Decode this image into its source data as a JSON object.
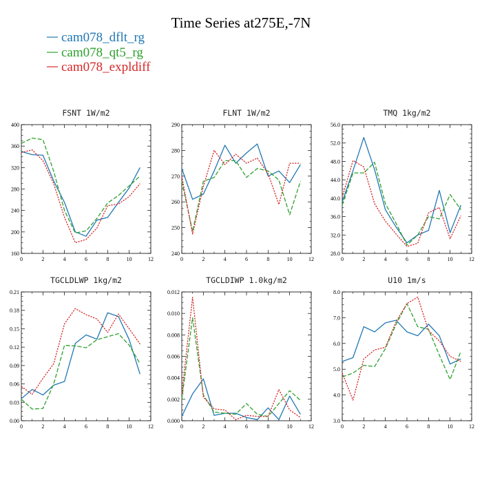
{
  "figure": {
    "title": "Time Series at275E,-7N",
    "legend": [
      {
        "name": "cam078_dflt_rg",
        "color": "#1f77b4",
        "dash": "solid"
      },
      {
        "name": "cam078_qt5_rg",
        "color": "#2ca02c",
        "dash": "dash"
      },
      {
        "name": "cam078_expldiff",
        "color": "#d62728",
        "dash": "dot"
      }
    ]
  },
  "chart_data": [
    {
      "type": "line",
      "title": "FSNT   1W/m2",
      "xlim": [
        0,
        12
      ],
      "ylim": [
        160,
        400
      ],
      "xticks": [
        "0",
        "2",
        "4",
        "6",
        "8",
        "10",
        "12"
      ],
      "yticks": [
        "160",
        "200",
        "240",
        "280",
        "320",
        "360",
        "400"
      ],
      "x": [
        0,
        1,
        2,
        3,
        4,
        5,
        6,
        7,
        8,
        9,
        10,
        11
      ],
      "series": [
        {
          "name": "cam078_dflt_rg",
          "values": [
            350,
            344,
            343,
            295,
            255,
            200,
            192,
            222,
            227,
            255,
            282,
            320
          ]
        },
        {
          "name": "cam078_qt5_rg",
          "values": [
            365,
            375,
            372,
            313,
            240,
            198,
            202,
            225,
            254,
            268,
            286,
            304
          ]
        },
        {
          "name": "cam078_expldiff",
          "values": [
            348,
            353,
            333,
            290,
            227,
            180,
            186,
            207,
            249,
            252,
            266,
            290
          ]
        }
      ]
    },
    {
      "type": "line",
      "title": "FLNT   1W/m2",
      "xlim": [
        0,
        12
      ],
      "ylim": [
        240,
        290
      ],
      "xticks": [
        "0",
        "2",
        "4",
        "6",
        "8",
        "10",
        "12"
      ],
      "yticks": [
        "240",
        "250",
        "260",
        "270",
        "280",
        "290"
      ],
      "x": [
        0,
        1,
        2,
        3,
        4,
        5,
        6,
        7,
        8,
        9,
        10,
        11
      ],
      "series": [
        {
          "name": "cam078_dflt_rg",
          "values": [
            273,
            261,
            263,
            272,
            282,
            275,
            279,
            282.5,
            270,
            272,
            267.5,
            274.5
          ]
        },
        {
          "name": "cam078_qt5_rg",
          "values": [
            268,
            248.5,
            268,
            269.5,
            276,
            276,
            269.5,
            273,
            272,
            268.5,
            255,
            268
          ]
        },
        {
          "name": "cam078_expldiff",
          "values": [
            270,
            247.5,
            266,
            280,
            274.5,
            278.5,
            275,
            277,
            271,
            259,
            275,
            275
          ]
        }
      ]
    },
    {
      "type": "line",
      "title": "TMQ   1kg/m2",
      "xlim": [
        0,
        12
      ],
      "ylim": [
        28,
        56
      ],
      "xticks": [
        "0",
        "2",
        "4",
        "6",
        "8",
        "10",
        "12"
      ],
      "yticks": [
        "28.0",
        "32.0",
        "36.0",
        "40.0",
        "44.0",
        "48.0",
        "52.0",
        "56.0"
      ],
      "x": [
        0,
        1,
        2,
        3,
        4,
        5,
        6,
        7,
        8,
        9,
        10,
        11
      ],
      "series": [
        {
          "name": "cam078_dflt_rg",
          "values": [
            39.2,
            46,
            53.2,
            46.2,
            37.5,
            33.7,
            30.3,
            32,
            33,
            41.7,
            32.5,
            38.5
          ]
        },
        {
          "name": "cam078_qt5_rg",
          "values": [
            38.5,
            45.5,
            45.5,
            47.8,
            38.8,
            34.5,
            29.8,
            32,
            36,
            35.5,
            40.8,
            37.5
          ]
        },
        {
          "name": "cam078_expldiff",
          "values": [
            40.2,
            48.2,
            46.8,
            38.8,
            35,
            32.2,
            29.5,
            30.2,
            36.8,
            38,
            31.2,
            36.2
          ]
        }
      ]
    },
    {
      "type": "line",
      "title": "TGCLDLWP   1kg/m2",
      "xlim": [
        0,
        12
      ],
      "ylim": [
        0,
        0.21
      ],
      "xticks": [
        "0",
        "2",
        "4",
        "6",
        "8",
        "10",
        "12"
      ],
      "yticks": [
        "0.00",
        "0.03",
        "0.06",
        "0.09",
        "0.12",
        "0.15",
        "0.18",
        "0.21"
      ],
      "x": [
        0,
        1,
        2,
        3,
        4,
        5,
        6,
        7,
        8,
        9,
        10,
        11
      ],
      "series": [
        {
          "name": "cam078_dflt_rg",
          "values": [
            0.036,
            0.051,
            0.042,
            0.058,
            0.064,
            0.126,
            0.14,
            0.133,
            0.176,
            0.17,
            0.132,
            0.076
          ]
        },
        {
          "name": "cam078_qt5_rg",
          "values": [
            0.035,
            0.019,
            0.02,
            0.06,
            0.123,
            0.122,
            0.119,
            0.132,
            0.137,
            0.142,
            0.123,
            0.093
          ]
        },
        {
          "name": "cam078_expldiff",
          "values": [
            0.056,
            0.043,
            0.069,
            0.093,
            0.158,
            0.183,
            0.173,
            0.166,
            0.144,
            0.174,
            0.15,
            0.125
          ]
        }
      ]
    },
    {
      "type": "line",
      "title": "TGCLDIWP   1.0kg/m2",
      "xlim": [
        0,
        12
      ],
      "ylim": [
        0,
        0.012
      ],
      "xticks": [
        "0",
        "2",
        "4",
        "6",
        "8",
        "10",
        "12"
      ],
      "yticks": [
        "0.000",
        "0.002",
        "0.004",
        "0.006",
        "0.008",
        "0.010",
        "0.012"
      ],
      "x": [
        0,
        1,
        2,
        3,
        4,
        5,
        6,
        7,
        8,
        9,
        10,
        11
      ],
      "series": [
        {
          "name": "cam078_dflt_rg",
          "values": [
            0.0004,
            0.0025,
            0.0039,
            0.0005,
            0.0007,
            0.0007,
            0.0003,
            0.0001,
            0.0012,
            0.0001,
            0.0023,
            0.0006
          ]
        },
        {
          "name": "cam078_qt5_rg",
          "values": [
            0.002,
            0.0096,
            0.0024,
            0.0008,
            0.0007,
            0.0006,
            0.0016,
            0.0006,
            0.0004,
            0.0016,
            0.0028,
            0.0019
          ]
        },
        {
          "name": "cam078_expldiff",
          "values": [
            0.0025,
            0.0115,
            0.0022,
            0.0011,
            0.001,
            0.0001,
            0.0005,
            0.0004,
            0.0004,
            0.0029,
            0.001,
            0.0003
          ]
        }
      ]
    },
    {
      "type": "line",
      "title": "U10   1m/s",
      "xlim": [
        0,
        12
      ],
      "ylim": [
        3,
        8
      ],
      "xticks": [
        "0",
        "2",
        "4",
        "6",
        "8",
        "10",
        "12"
      ],
      "yticks": [
        "3.0",
        "4.0",
        "5.0",
        "6.0",
        "7.0",
        "8.0"
      ],
      "x": [
        0,
        1,
        2,
        3,
        4,
        5,
        6,
        7,
        8,
        9,
        10,
        11
      ],
      "series": [
        {
          "name": "cam078_dflt_rg",
          "values": [
            5.3,
            5.45,
            6.65,
            6.45,
            6.8,
            6.9,
            6.45,
            6.3,
            6.75,
            6.3,
            5.2,
            5.4
          ]
        },
        {
          "name": "cam078_qt5_rg",
          "values": [
            4.7,
            4.85,
            5.15,
            5.1,
            5.8,
            6.75,
            7.55,
            6.65,
            6.55,
            5.55,
            4.6,
            5.7
          ]
        },
        {
          "name": "cam078_expldiff",
          "values": [
            4.85,
            3.8,
            5.4,
            5.75,
            5.85,
            6.85,
            7.55,
            7.8,
            6.5,
            6.1,
            5.5,
            5.3
          ]
        }
      ]
    }
  ]
}
